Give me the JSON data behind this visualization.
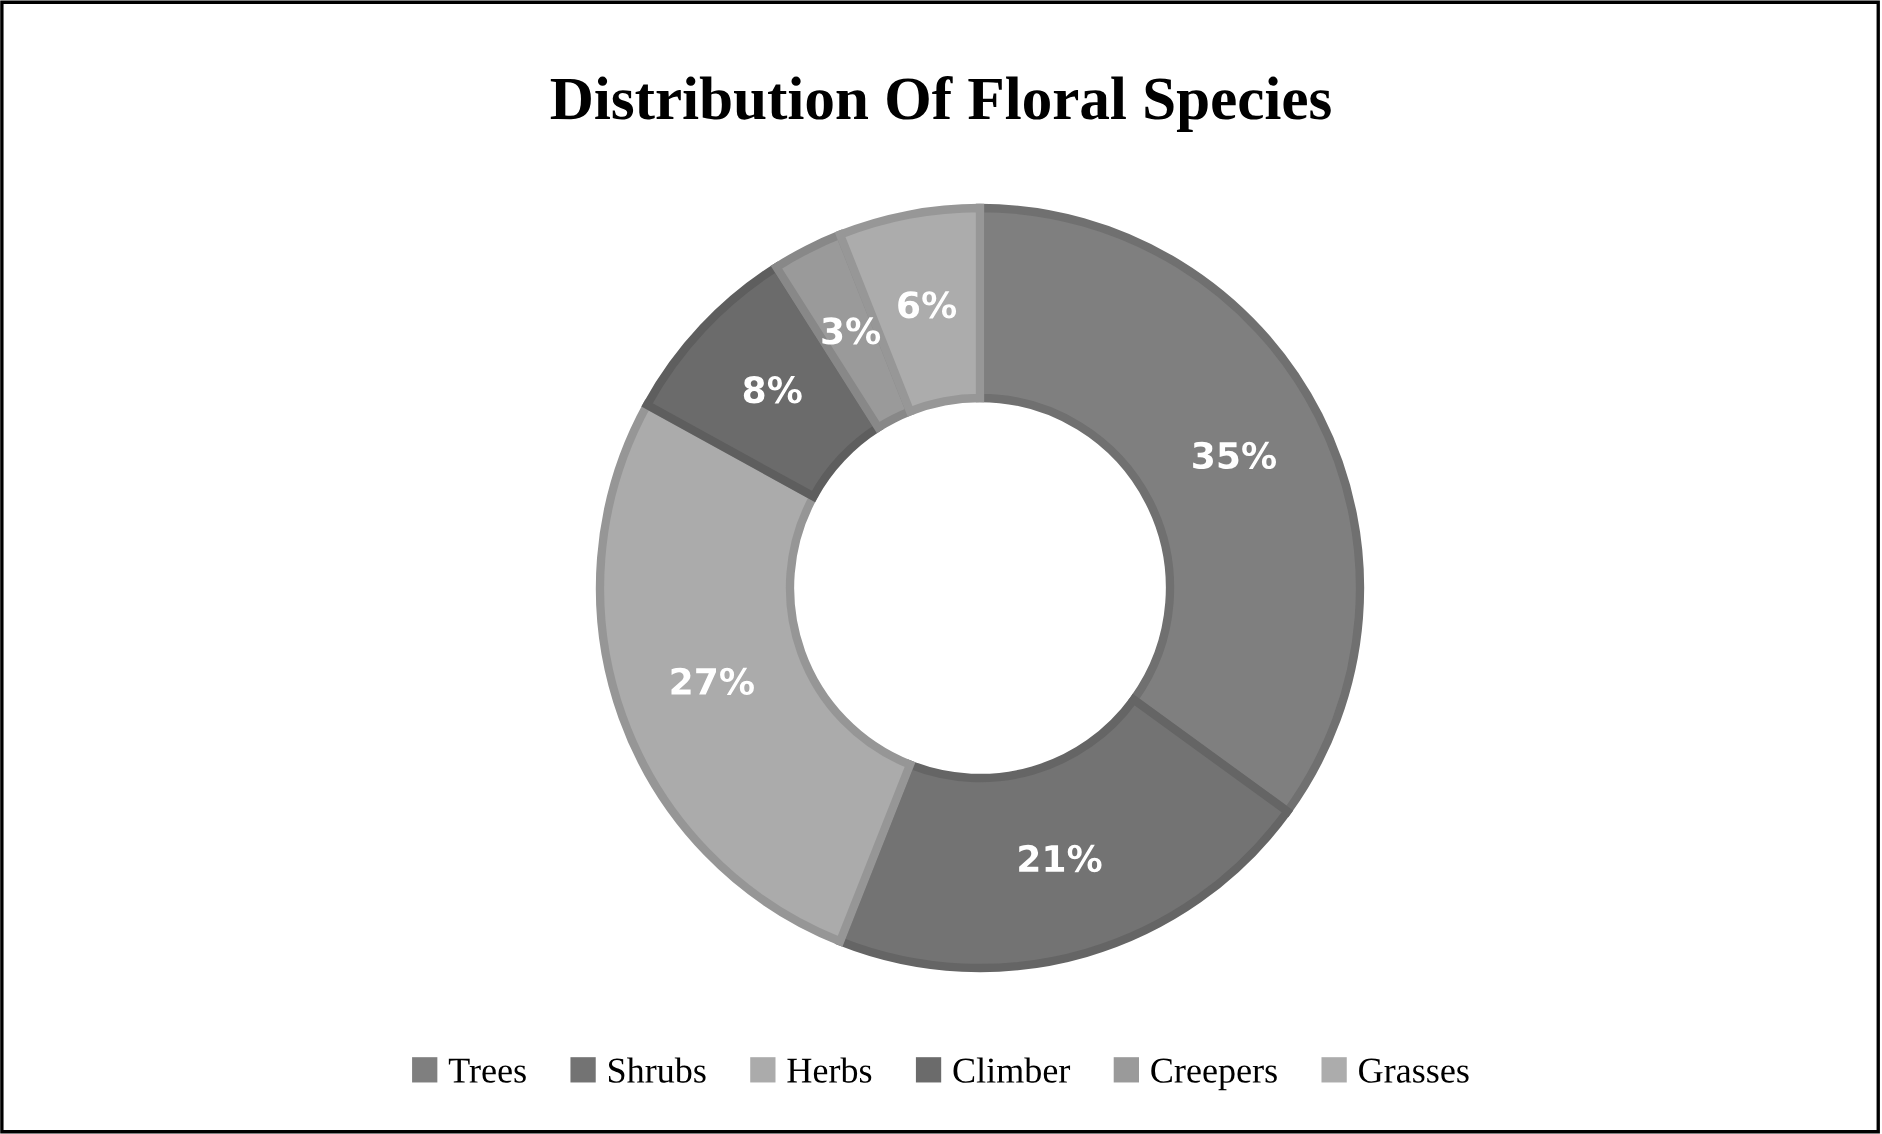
{
  "chart_data": {
    "type": "donut",
    "title": "Distribution Of Floral Species",
    "categories": [
      "Trees",
      "Shrubs",
      "Herbs",
      "Climber",
      "Creepers",
      "Grasses"
    ],
    "values": [
      35,
      21,
      27,
      8,
      3,
      6
    ],
    "colors": [
      "#7f7f7f",
      "#737373",
      "#ababab",
      "#6b6b6b",
      "#9a9a9a",
      "#acacac"
    ],
    "value_labels": [
      "35%",
      "21%",
      "27%",
      "8%",
      "3%",
      "6%"
    ],
    "legend": "bottom"
  }
}
